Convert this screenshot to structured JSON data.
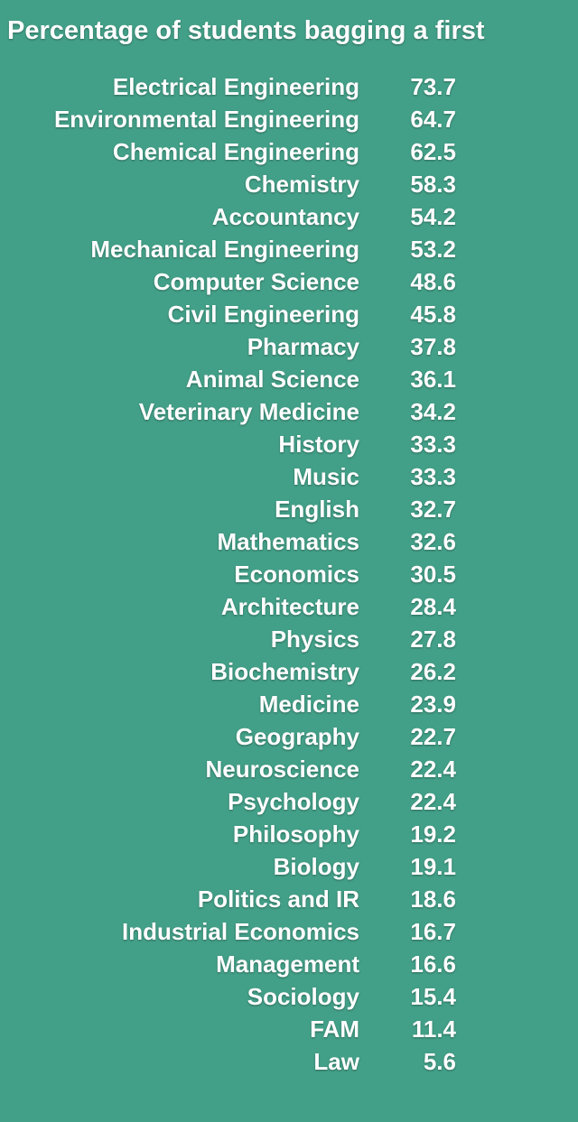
{
  "header": {
    "title": "Percentage of students bagging a first"
  },
  "table": {
    "rows": [
      [
        "Electrical Engineering",
        73.7
      ],
      [
        "Environmental Engineering",
        64.7
      ],
      [
        "Chemical Engineering",
        62.5
      ],
      [
        "Chemistry",
        58.3
      ],
      [
        "Accountancy",
        54.2
      ],
      [
        "Mechanical Engineering",
        53.2
      ],
      [
        "Computer Science",
        48.6
      ],
      [
        "Civil Engineering",
        45.8
      ],
      [
        "Pharmacy",
        37.8
      ],
      [
        "Animal Science",
        36.1
      ],
      [
        "Veterinary Medicine",
        34.2
      ],
      [
        "History",
        33.3
      ],
      [
        "Music",
        33.3
      ],
      [
        "English",
        32.7
      ],
      [
        "Mathematics",
        32.6
      ],
      [
        "Economics",
        30.5
      ],
      [
        "Architecture",
        28.4
      ],
      [
        "Physics",
        27.8
      ],
      [
        "Biochemistry",
        26.2
      ],
      [
        "Medicine",
        23.9
      ],
      [
        "Geography",
        22.7
      ],
      [
        "Neuroscience",
        22.4
      ],
      [
        "Psychology",
        22.4
      ],
      [
        "Philosophy",
        19.2
      ],
      [
        "Biology",
        19.1
      ],
      [
        "Politics and IR",
        18.6
      ],
      [
        "Industrial Economics",
        16.7
      ],
      [
        "Management",
        16.6
      ],
      [
        "Sociology",
        15.4
      ],
      [
        "FAM",
        11.4
      ],
      [
        "Law",
        5.6
      ]
    ]
  }
}
